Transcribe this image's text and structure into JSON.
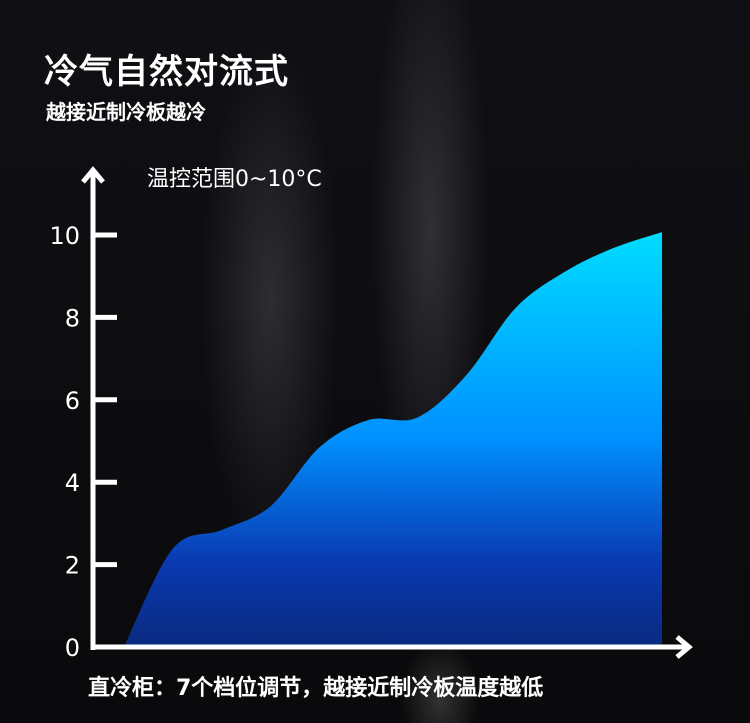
{
  "title": "冷气自然对流式",
  "subtitle": "越接近制冷板越冷",
  "caption": "直冷柜：7个档位调节，越接近制冷板温度越低",
  "chart_data": {
    "type": "area",
    "title": "",
    "ylabel": "温控范围0~10°C",
    "xlabel": "",
    "ylim": [
      0,
      10
    ],
    "yticks": [
      "0",
      "2",
      "4",
      "6",
      "8",
      "10"
    ],
    "grid": false,
    "values": [
      0,
      2.39,
      2.84,
      3.42,
      4.85,
      5.51,
      5.57,
      6.6,
      8.22,
      9.1,
      9.68,
      10.07
    ],
    "colors": {
      "top": "#00dcff",
      "middle": "#0090ff",
      "bottom": "#0a2a80",
      "axis": "#ffffff"
    }
  }
}
